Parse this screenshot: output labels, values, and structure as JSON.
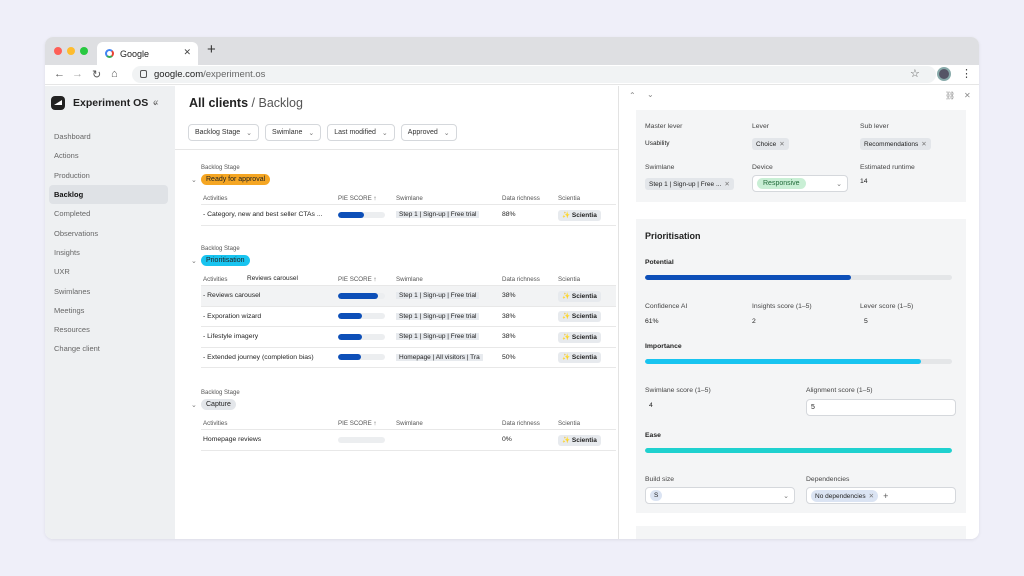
{
  "browser": {
    "tab_title": "Google",
    "url_domain": "google.com",
    "url_path": "/experiment.os"
  },
  "app": {
    "name": "Experiment OS"
  },
  "sidebar": {
    "items": [
      "Dashboard",
      "Actions",
      "Production",
      "Backlog",
      "Completed",
      "Observations",
      "Insights",
      "UXR",
      "Swimlanes",
      "Meetings",
      "Resources",
      "Change client"
    ],
    "active": "Backlog"
  },
  "header": {
    "title_main": "All clients",
    "title_sub": "/ Backlog"
  },
  "filters": [
    "Backlog Stage",
    "Swimlane",
    "Last modified",
    "Approved"
  ],
  "columns": {
    "activities": "Activities",
    "pie": "PIE SCORE ↑",
    "swimlane": "Swimlane",
    "richness": "Data richness",
    "scientia": "Scientia"
  },
  "groups": [
    {
      "label": "Backlog Stage",
      "stage": "Ready for approval",
      "color": "#f5a623",
      "rows": [
        {
          "name": "- Category, new and best seller CTAs ...",
          "score": 0.55,
          "swimlane": "Step 1 | Sign-up | Free trial",
          "richness": "88%",
          "scientia": "✨ Scientia"
        }
      ]
    },
    {
      "label": "Backlog Stage",
      "stage": "Prioritisation",
      "color": "#18c4f0",
      "tooltip": "Reviews carousel",
      "rows": [
        {
          "name": "- Reviews carousel",
          "score": 0.85,
          "swimlane": "Step 1 | Sign-up | Free trial",
          "richness": "38%",
          "scientia": "✨ Scientia"
        },
        {
          "name": "- Exporation wizard",
          "score": 0.52,
          "swimlane": "Step 1 | Sign-up | Free trial",
          "richness": "38%",
          "scientia": "✨ Scientia"
        },
        {
          "name": "- Lifestyle imagery",
          "score": 0.52,
          "swimlane": "Step 1 | Sign-up | Free trial",
          "richness": "38%",
          "scientia": "✨ Scientia"
        },
        {
          "name": "- Extended journey (completion bias)",
          "score": 0.48,
          "swimlane": "Homepage | All visitors | Tra",
          "richness": "50%",
          "scientia": "✨ Scientia"
        }
      ]
    },
    {
      "label": "Backlog Stage",
      "stage": "Capture",
      "color": "#e3e6ea",
      "rows": [
        {
          "name": "Homepage reviews",
          "score": 0,
          "swimlane": "",
          "richness": "0%",
          "scientia": "✨ Scientia"
        }
      ]
    }
  ],
  "panel": {
    "master_lever_label": "Master lever",
    "master_lever": "Usability",
    "lever_label": "Lever",
    "lever": "Choice",
    "sub_lever_label": "Sub lever",
    "sub_lever": "Recommendations",
    "swimlane_label": "Swimlane",
    "swimlane": "Step 1 | Sign-up | Free ...",
    "device_label": "Device",
    "device": "Responsive",
    "runtime_label": "Estimated runtime",
    "runtime": "14",
    "prioritisation_title": "Prioritisation",
    "potential_label": "Potential",
    "potential": 0.67,
    "confidence_label": "Confidence AI",
    "confidence": "61%",
    "insights_label": "Insights score (1–5)",
    "insights": "2",
    "lever_score_label": "Lever score (1–5)",
    "lever_score": "5",
    "importance_label": "Importance",
    "importance": 0.9,
    "swimlane_score_label": "Swimlane score (1–5)",
    "swimlane_score": "4",
    "alignment_label": "Alignment score (1–5)",
    "alignment": "5",
    "ease_label": "Ease",
    "ease": 1.0,
    "build_label": "Build size",
    "build": "S",
    "dependencies_label": "Dependencies",
    "dependencies": "No dependencies"
  },
  "colors": {
    "primary": "#0d4fb8",
    "importance": "#18c4f0",
    "ease": "#1fd1cf"
  }
}
